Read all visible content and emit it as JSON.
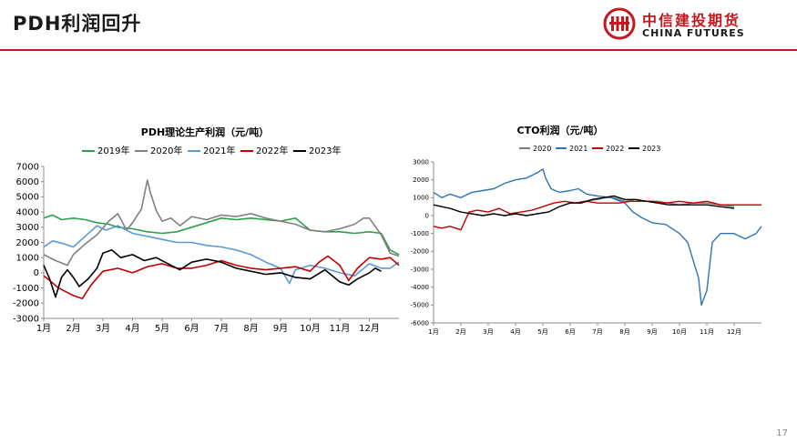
{
  "slide": {
    "title": "PDH利润回升",
    "page_number": "17"
  },
  "logo": {
    "cn_name": "中信建投期货",
    "en_name": "CHINA FUTURES"
  },
  "colors": {
    "brand_red": "#c8161d"
  },
  "chart_data": [
    {
      "id": "pdh",
      "type": "line",
      "title": "PDH理论生产利润（元/吨）",
      "xlabel": "",
      "ylabel": "",
      "ylim": [
        -3000,
        7000
      ],
      "yticks": [
        -3000,
        -2000,
        -1000,
        0,
        1000,
        2000,
        3000,
        4000,
        5000,
        6000,
        7000
      ],
      "x_tick_labels": [
        "1月",
        "2月",
        "3月",
        "4月",
        "5月",
        "6月",
        "7月",
        "8月",
        "9月",
        "10月",
        "11月",
        "12月"
      ],
      "x_unit": "month",
      "xlim": [
        1,
        13
      ],
      "grid": false,
      "legend_position": "top",
      "series": [
        {
          "name": "2019年",
          "color": "#2ca14a",
          "x": [
            1,
            1.3,
            1.6,
            2,
            2.4,
            2.8,
            3.2,
            3.5,
            4,
            4.5,
            5,
            5.5,
            6,
            6.5,
            7,
            7.5,
            8,
            8.5,
            9,
            9.5,
            10,
            10.5,
            11,
            11.5,
            12,
            12.4,
            12.7,
            13
          ],
          "values": [
            3600,
            3800,
            3500,
            3600,
            3500,
            3300,
            3200,
            3000,
            2900,
            2700,
            2600,
            2700,
            3000,
            3300,
            3600,
            3500,
            3600,
            3500,
            3400,
            3600,
            2800,
            2700,
            2700,
            2600,
            2700,
            2600,
            1500,
            1200
          ]
        },
        {
          "name": "2020年",
          "color": "#808080",
          "x": [
            1,
            1.4,
            1.8,
            2,
            2.4,
            2.8,
            3.2,
            3.5,
            3.8,
            4,
            4.3,
            4.5,
            4.6,
            4.8,
            5,
            5.3,
            5.6,
            6,
            6.5,
            7,
            7.5,
            8,
            8.5,
            9,
            9.5,
            10,
            10.5,
            11,
            11.5,
            11.8,
            12,
            12.4,
            12.7,
            13
          ],
          "values": [
            1200,
            800,
            500,
            1200,
            1900,
            2500,
            3400,
            3900,
            2800,
            3300,
            4200,
            6100,
            5300,
            4100,
            3400,
            3600,
            3100,
            3700,
            3500,
            3800,
            3700,
            3900,
            3600,
            3400,
            3200,
            2800,
            2700,
            2900,
            3200,
            3600,
            3600,
            2500,
            1300,
            1100
          ]
        },
        {
          "name": "2021年",
          "color": "#5b9bd5",
          "x": [
            1,
            1.3,
            1.7,
            2,
            2.4,
            2.8,
            3.1,
            3.5,
            4,
            4.5,
            5,
            5.5,
            6,
            6.5,
            7,
            7.5,
            8,
            8.5,
            9,
            9.3,
            9.5,
            10,
            10.5,
            11,
            11.5,
            12,
            12.4,
            12.7,
            13
          ],
          "values": [
            1700,
            2100,
            1900,
            1700,
            2400,
            3100,
            2800,
            3100,
            2600,
            2400,
            2200,
            2000,
            2000,
            1800,
            1700,
            1500,
            1200,
            700,
            300,
            -700,
            200,
            500,
            300,
            0,
            -200,
            600,
            300,
            300,
            700
          ]
        },
        {
          "name": "2022年",
          "color": "#c00000",
          "x": [
            1,
            1.2,
            1.5,
            1.8,
            2,
            2.3,
            2.6,
            3,
            3.5,
            4,
            4.5,
            5,
            5.5,
            6,
            6.5,
            7,
            7.5,
            8,
            8.5,
            9,
            9.5,
            10,
            10.3,
            10.6,
            11,
            11.3,
            11.6,
            12,
            12.4,
            12.7,
            13
          ],
          "values": [
            -200,
            -500,
            -1000,
            -1300,
            -1500,
            -1700,
            -800,
            100,
            300,
            0,
            400,
            600,
            300,
            300,
            500,
            800,
            500,
            300,
            200,
            300,
            400,
            100,
            700,
            1100,
            500,
            -500,
            300,
            1000,
            900,
            1000,
            500
          ]
        },
        {
          "name": "2023年",
          "color": "#000000",
          "x": [
            1,
            1.2,
            1.4,
            1.6,
            1.8,
            2,
            2.2,
            2.5,
            2.8,
            3,
            3.3,
            3.6,
            4,
            4.4,
            4.8,
            5.2,
            5.6,
            6,
            6.5,
            7,
            7.5,
            8,
            8.5,
            9,
            9.5,
            10,
            10.5,
            11,
            11.3,
            11.6,
            12,
            12.2,
            12.4
          ],
          "values": [
            500,
            -400,
            -1600,
            -300,
            200,
            -300,
            -900,
            -400,
            300,
            1300,
            1500,
            1000,
            1200,
            800,
            1000,
            600,
            200,
            700,
            900,
            700,
            300,
            100,
            -100,
            0,
            -300,
            -400,
            200,
            -600,
            -800,
            -400,
            0,
            300,
            100
          ]
        }
      ]
    },
    {
      "id": "cto",
      "type": "line",
      "title": "CTO利润（元/吨）",
      "xlabel": "",
      "ylabel": "",
      "ylim": [
        -6000,
        3000
      ],
      "yticks": [
        -6000,
        -5000,
        -4000,
        -3000,
        -2000,
        -1000,
        0,
        1000,
        2000,
        3000
      ],
      "x_tick_labels": [
        "1月",
        "2月",
        "3月",
        "4月",
        "5月",
        "6月",
        "7月",
        "8月",
        "9月",
        "10月",
        "11月",
        "12月"
      ],
      "x_unit": "month",
      "xlim": [
        1,
        13
      ],
      "grid": false,
      "legend_position": "top",
      "series": [
        {
          "name": "2020",
          "color": "#808080",
          "x": [
            6.2,
            6.5,
            7,
            7.3,
            7.6,
            8,
            8.4,
            8.8,
            9.2,
            9.6,
            10,
            10.5,
            11,
            11.5,
            12
          ],
          "values": [
            700,
            800,
            900,
            1000,
            1000,
            800,
            900,
            800,
            800,
            700,
            600,
            700,
            700,
            600,
            500
          ]
        },
        {
          "name": "2021",
          "color": "#2e75b6",
          "x": [
            1,
            1.3,
            1.6,
            2,
            2.4,
            2.8,
            3.2,
            3.6,
            4,
            4.4,
            4.8,
            5,
            5.1,
            5.3,
            5.6,
            6,
            6.3,
            6.6,
            7,
            7.5,
            8,
            8.3,
            8.6,
            9,
            9.5,
            10,
            10.3,
            10.5,
            10.7,
            10.8,
            11,
            11.2,
            11.5,
            12,
            12.4,
            12.8,
            13
          ],
          "values": [
            1300,
            1000,
            1200,
            1000,
            1300,
            1400,
            1500,
            1800,
            2000,
            2100,
            2400,
            2600,
            2100,
            1500,
            1300,
            1400,
            1500,
            1200,
            1100,
            1000,
            700,
            200,
            -100,
            -400,
            -500,
            -1000,
            -1500,
            -2500,
            -3500,
            -5000,
            -4200,
            -1500,
            -1000,
            -1000,
            -1300,
            -1000,
            -600
          ]
        },
        {
          "name": "2022",
          "color": "#c00000",
          "x": [
            1,
            1.3,
            1.6,
            2,
            2.3,
            2.6,
            3,
            3.4,
            3.8,
            4.2,
            4.6,
            5,
            5.4,
            5.8,
            6.2,
            6.6,
            7,
            7.4,
            7.8,
            8.2,
            8.6,
            9,
            9.5,
            10,
            10.5,
            11,
            11.5,
            12,
            12.5,
            13
          ],
          "values": [
            -600,
            -700,
            -600,
            -800,
            200,
            300,
            200,
            400,
            100,
            200,
            300,
            500,
            700,
            800,
            700,
            800,
            700,
            700,
            700,
            800,
            800,
            800,
            700,
            800,
            700,
            800,
            600,
            600,
            600,
            600
          ]
        },
        {
          "name": "2023",
          "color": "#000000",
          "x": [
            1,
            1.3,
            1.6,
            2,
            2.4,
            2.8,
            3.2,
            3.6,
            4,
            4.4,
            4.8,
            5.2,
            5.6,
            6,
            6.4,
            6.8,
            7.2,
            7.6,
            8,
            8.4,
            8.8,
            9.2,
            9.6,
            10,
            10.5,
            11,
            11.5,
            12
          ],
          "values": [
            600,
            500,
            400,
            200,
            100,
            0,
            100,
            0,
            100,
            0,
            100,
            200,
            500,
            700,
            700,
            900,
            1000,
            1100,
            900,
            900,
            800,
            700,
            600,
            600,
            600,
            600,
            500,
            400
          ]
        }
      ]
    }
  ]
}
